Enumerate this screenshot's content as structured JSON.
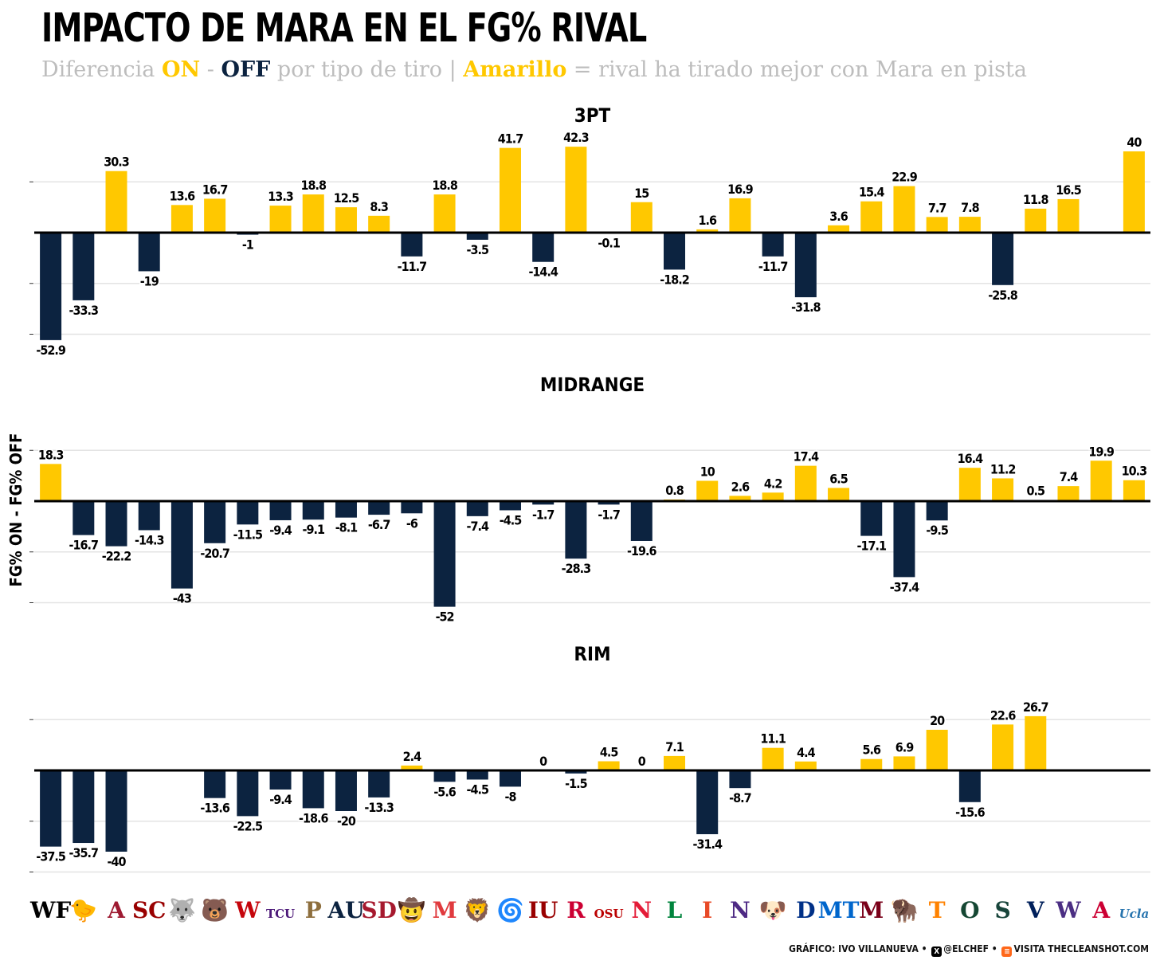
{
  "header": {
    "title": "IMPACTO DE MARA EN EL FG% RIVAL",
    "subtitle": {
      "p1": "Diferencia ",
      "on": "ON",
      "p2": " - ",
      "off": "OFF",
      "p3": " por tipo de tiro | ",
      "amarillo": "Amarillo",
      "p4": " = rival ha tirado mejor con Mara en pista"
    }
  },
  "footer": {
    "credit": "GRÁFICO: IVO VILLANUEVA •",
    "x_handle": "@ELCHEF •",
    "site": "VISITA THECLEANSHOT.COM",
    "x_icon": "x-logo-icon",
    "site_icon": "substack-logo-icon"
  },
  "colors": {
    "positive": "#ffc800",
    "negative": "#0c2340",
    "grid": "#e3e3e3",
    "zero": "#000000"
  },
  "chart_data": {
    "type": "bar",
    "ylabel": "FG% ON - FG% OFF",
    "grid": true,
    "categories": [
      "WF",
      "IOWA",
      "ALABAMA",
      "USC",
      "UCONN",
      "BAYLOR",
      "WISCONSIN",
      "TCU",
      "PURDUE",
      "AUBURN",
      "SDSU",
      "MCNEESE",
      "MARYLAND",
      "PENN STATE",
      "SLU",
      "INDIANA",
      "RUTGERS",
      "OHIO STATE",
      "NEBRASKA",
      "LA SALLE",
      "ILLINOIS",
      "NORTHWESTERN",
      "GONZAGA",
      "DUKE",
      "MTSU",
      "MINNESOTA",
      "NDSU",
      "TENNESSEE",
      "OREGON",
      "MICHIGAN STATE",
      "VILLANOVA",
      "WASHINGTON",
      "ARIZONA",
      "UCLA"
    ],
    "logos": [
      {
        "text": "WF",
        "color": "#000000"
      },
      {
        "text": "🐤",
        "color": "#d4a400"
      },
      {
        "text": "A",
        "color": "#9e1b32"
      },
      {
        "text": "SC",
        "color": "#990000"
      },
      {
        "text": "🐺",
        "color": "#0e1a3b"
      },
      {
        "text": "🐻",
        "color": "#154734"
      },
      {
        "text": "W",
        "color": "#c5050c"
      },
      {
        "text": "TCU",
        "color": "#4d1979"
      },
      {
        "text": "P",
        "color": "#8e6f3e"
      },
      {
        "text": "AU",
        "color": "#0c2340"
      },
      {
        "text": "SD",
        "color": "#a6192e"
      },
      {
        "text": "🤠",
        "color": "#005dab"
      },
      {
        "text": "M",
        "color": "#e03a3e"
      },
      {
        "text": "🦁",
        "color": "#041e42"
      },
      {
        "text": "🌀",
        "color": "#003da5"
      },
      {
        "text": "ΙU",
        "color": "#990000"
      },
      {
        "text": "R",
        "color": "#cc0033"
      },
      {
        "text": "OSU",
        "color": "#bb0000"
      },
      {
        "text": "N",
        "color": "#e41c38"
      },
      {
        "text": "L",
        "color": "#00843d"
      },
      {
        "text": "I",
        "color": "#e84a27"
      },
      {
        "text": "N",
        "color": "#4e2a84"
      },
      {
        "text": "🐶",
        "color": "#041e42"
      },
      {
        "text": "D",
        "color": "#003087"
      },
      {
        "text": "MT",
        "color": "#0066cc"
      },
      {
        "text": "M",
        "color": "#7a0019"
      },
      {
        "text": "🦬",
        "color": "#0a5640"
      },
      {
        "text": "T",
        "color": "#ff8200"
      },
      {
        "text": "O",
        "color": "#154733"
      },
      {
        "text": "S",
        "color": "#18453b"
      },
      {
        "text": "V",
        "color": "#00205b"
      },
      {
        "text": "W",
        "color": "#4b2e83"
      },
      {
        "text": "A",
        "color": "#cc0033"
      },
      {
        "text": "Ucla",
        "color": "#2774ae"
      }
    ],
    "panels": [
      {
        "title": "3PT",
        "values": [
          -52.9,
          -33.3,
          30.3,
          -19,
          13.6,
          16.7,
          -1,
          13.3,
          18.8,
          12.5,
          8.3,
          -11.7,
          18.8,
          -3.5,
          41.7,
          -14.4,
          42.3,
          -0.1,
          15,
          -18.2,
          1.6,
          16.9,
          -11.7,
          -31.8,
          3.6,
          15.4,
          22.9,
          7.7,
          7.8,
          -25.8,
          11.8,
          16.5,
          null,
          40
        ]
      },
      {
        "title": "MIDRANGE",
        "values": [
          18.3,
          -16.7,
          -22.2,
          -14.3,
          -43,
          -20.7,
          -11.5,
          -9.4,
          -9.1,
          -8.1,
          -6.7,
          -6,
          -52,
          -7.4,
          -4.5,
          -1.7,
          -28.3,
          -1.7,
          -19.6,
          0.8,
          10,
          2.6,
          4.2,
          17.4,
          6.5,
          -17.1,
          -37.4,
          -9.5,
          16.4,
          11.2,
          0.5,
          7.4,
          19.9,
          10.3
        ]
      },
      {
        "title": "RIM",
        "values": [
          -37.5,
          -35.7,
          -40,
          null,
          null,
          -13.6,
          -22.5,
          -9.4,
          -18.6,
          -20,
          -13.3,
          2.4,
          -5.6,
          -4.5,
          -8,
          0,
          -1.5,
          4.5,
          0,
          7.1,
          -31.4,
          -8.7,
          11.1,
          4.4,
          null,
          5.6,
          6.9,
          20,
          -15.6,
          22.6,
          26.7,
          null,
          null,
          null
        ]
      }
    ]
  }
}
